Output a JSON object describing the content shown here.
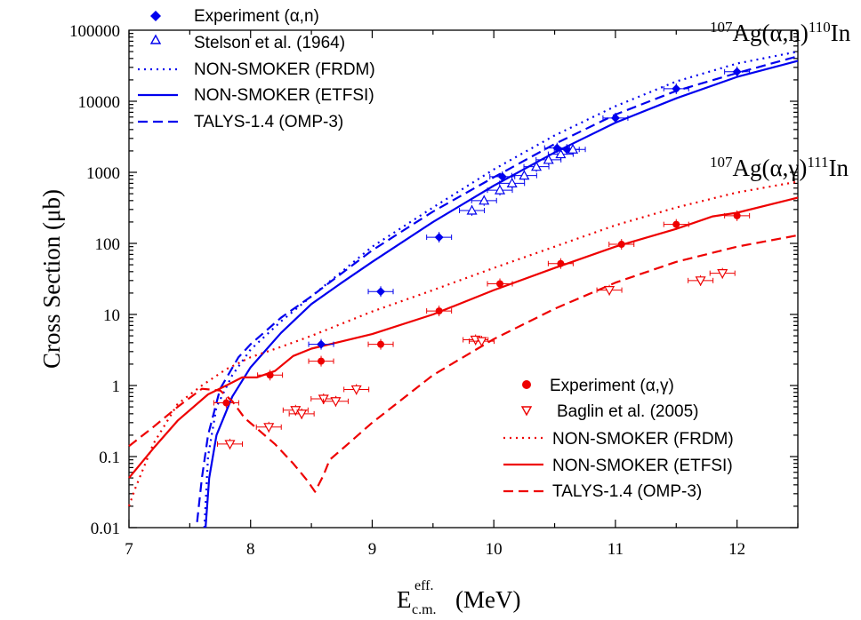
{
  "chart_data": {
    "type": "scatter",
    "xlabel": "E",
    "xlabel_sup": "eff.",
    "xlabel_sub": "c.m.",
    "xlabel_unit": "(MeV)",
    "ylabel": "Cross Section (μb)",
    "y_scale": "log",
    "xlim": [
      7,
      12.5
    ],
    "ylim": [
      0.01,
      100000
    ],
    "x_ticks": [
      "7",
      "8",
      "9",
      "10",
      "11",
      "12"
    ],
    "y_ticks": [
      "0.01",
      "0.1",
      "1",
      "10",
      "100",
      "1000",
      "10000",
      "100000"
    ],
    "reaction_labels": [
      {
        "pre": "107",
        "main": "Ag(α,n)",
        "sup": "110",
        "post": "In"
      },
      {
        "pre": "107",
        "main": "Ag(α,γ)",
        "sup": "111",
        "post": "In"
      }
    ],
    "legends": [
      {
        "entries": [
          {
            "label": "Experiment (α,n)"
          },
          {
            "label": "Stelson et al. (1964)"
          },
          {
            "label": "NON-SMOKER (FRDM)"
          },
          {
            "label": "NON-SMOKER (ETFSI)"
          },
          {
            "label": "TALYS-1.4 (OMP-3)"
          }
        ]
      },
      {
        "entries": [
          {
            "label": "Experiment (α,γ)"
          },
          {
            "label": "Baglin et al. (2005)"
          },
          {
            "label": "NON-SMOKER (FRDM)"
          },
          {
            "label": "NON-SMOKER (ETFSI)"
          },
          {
            "label": "TALYS-1.4 (OMP-3)"
          }
        ]
      }
    ],
    "series": [
      {
        "id": "an_exp",
        "marker": "diamond",
        "color": "#0000ee",
        "points": [
          [
            8.58,
            3.8
          ],
          [
            9.07,
            21
          ],
          [
            9.55,
            122
          ],
          [
            10.07,
            870
          ],
          [
            10.52,
            2200
          ],
          [
            10.6,
            2100
          ],
          [
            11.0,
            5800
          ],
          [
            11.5,
            15000
          ],
          [
            12.0,
            26000
          ]
        ]
      },
      {
        "id": "an_stelson",
        "marker": "triangle",
        "color": "#0000ee",
        "points": [
          [
            9.82,
            290
          ],
          [
            9.92,
            400
          ],
          [
            10.05,
            560
          ],
          [
            10.15,
            700
          ],
          [
            10.25,
            900
          ],
          [
            10.35,
            1200
          ],
          [
            10.45,
            1500
          ],
          [
            10.55,
            1800
          ],
          [
            10.65,
            2100
          ]
        ]
      },
      {
        "id": "an_frdm",
        "line": "dotted",
        "color": "#0000ee",
        "points": [
          [
            7.62,
            0.01
          ],
          [
            7.65,
            0.1
          ],
          [
            7.72,
            0.5
          ],
          [
            7.85,
            1.4
          ],
          [
            8.0,
            3.2
          ],
          [
            8.25,
            8
          ],
          [
            8.5,
            18
          ],
          [
            8.75,
            40
          ],
          [
            9.0,
            90
          ],
          [
            9.5,
            320
          ],
          [
            10.0,
            1100
          ],
          [
            10.5,
            3300
          ],
          [
            11.0,
            8500
          ],
          [
            11.5,
            19000
          ],
          [
            12.0,
            34000
          ],
          [
            12.5,
            50000
          ]
        ]
      },
      {
        "id": "an_etfsi",
        "line": "solid",
        "color": "#0000ee",
        "points": [
          [
            7.63,
            0.01
          ],
          [
            7.66,
            0.05
          ],
          [
            7.72,
            0.2
          ],
          [
            7.85,
            0.7
          ],
          [
            8.0,
            1.8
          ],
          [
            8.25,
            5.5
          ],
          [
            8.5,
            14
          ],
          [
            8.75,
            28
          ],
          [
            9.0,
            55
          ],
          [
            9.5,
            200
          ],
          [
            10.0,
            650
          ],
          [
            10.5,
            1900
          ],
          [
            11.0,
            5000
          ],
          [
            11.5,
            11000
          ],
          [
            12.0,
            22000
          ],
          [
            12.5,
            37000
          ]
        ]
      },
      {
        "id": "an_talys",
        "line": "dashed",
        "color": "#0000ee",
        "points": [
          [
            7.56,
            0.012
          ],
          [
            7.6,
            0.05
          ],
          [
            7.65,
            0.2
          ],
          [
            7.75,
            0.9
          ],
          [
            7.9,
            2.5
          ],
          [
            8.0,
            3.8
          ],
          [
            8.25,
            9
          ],
          [
            8.5,
            18
          ],
          [
            8.75,
            38
          ],
          [
            9.0,
            80
          ],
          [
            9.5,
            280
          ],
          [
            10.0,
            850
          ],
          [
            10.5,
            2500
          ],
          [
            11.0,
            6500
          ],
          [
            11.5,
            14000
          ],
          [
            12.0,
            25000
          ],
          [
            12.5,
            43000
          ]
        ]
      },
      {
        "id": "ag_exp",
        "marker": "circle",
        "color": "#ee0000",
        "points": [
          [
            7.8,
            0.57
          ],
          [
            8.16,
            1.4
          ],
          [
            8.58,
            2.2
          ],
          [
            9.07,
            3.8
          ],
          [
            9.55,
            11.2
          ],
          [
            10.05,
            27
          ],
          [
            10.55,
            52
          ],
          [
            11.05,
            97
          ],
          [
            11.5,
            185
          ],
          [
            12.0,
            245
          ]
        ]
      },
      {
        "id": "ag_baglin",
        "marker": "triangle-down",
        "color": "#ee0000",
        "points": [
          [
            7.83,
            0.15
          ],
          [
            8.15,
            0.26
          ],
          [
            8.37,
            0.45
          ],
          [
            8.42,
            0.4
          ],
          [
            8.6,
            0.65
          ],
          [
            8.7,
            0.6
          ],
          [
            8.87,
            0.88
          ],
          [
            9.85,
            4.4
          ],
          [
            9.9,
            4.2
          ],
          [
            10.95,
            22
          ],
          [
            11.7,
            30
          ],
          [
            11.88,
            38
          ]
        ]
      },
      {
        "id": "ag_frdm",
        "line": "dotted",
        "color": "#ee0000",
        "points": [
          [
            7.0,
            0.02
          ],
          [
            7.05,
            0.035
          ],
          [
            7.2,
            0.15
          ],
          [
            7.4,
            0.55
          ],
          [
            7.6,
            1.0
          ],
          [
            7.8,
            1.7
          ],
          [
            8.0,
            2.5
          ],
          [
            8.25,
            3.5
          ],
          [
            8.5,
            5.0
          ],
          [
            9.0,
            11
          ],
          [
            9.5,
            22
          ],
          [
            10.0,
            45
          ],
          [
            10.5,
            90
          ],
          [
            11.0,
            180
          ],
          [
            11.5,
            320
          ],
          [
            12.0,
            520
          ],
          [
            12.5,
            740
          ]
        ]
      },
      {
        "id": "ag_etfsi",
        "line": "solid",
        "color": "#ee0000",
        "points": [
          [
            7.0,
            0.05
          ],
          [
            7.2,
            0.13
          ],
          [
            7.4,
            0.32
          ],
          [
            7.65,
            0.75
          ],
          [
            7.8,
            1.0
          ],
          [
            7.93,
            1.3
          ],
          [
            8.05,
            1.3
          ],
          [
            8.2,
            1.6
          ],
          [
            8.35,
            2.6
          ],
          [
            8.5,
            3.3
          ],
          [
            9.0,
            5.3
          ],
          [
            9.5,
            10
          ],
          [
            10.0,
            22
          ],
          [
            10.5,
            45
          ],
          [
            11.0,
            90
          ],
          [
            11.5,
            160
          ],
          [
            11.8,
            240
          ],
          [
            12.0,
            270
          ],
          [
            12.5,
            440
          ]
        ]
      },
      {
        "id": "ag_talys",
        "line": "dashed",
        "color": "#ee0000",
        "points": [
          [
            7.0,
            0.14
          ],
          [
            7.2,
            0.26
          ],
          [
            7.4,
            0.5
          ],
          [
            7.6,
            0.9
          ],
          [
            7.75,
            0.85
          ],
          [
            7.85,
            0.6
          ],
          [
            7.95,
            0.35
          ],
          [
            8.05,
            0.25
          ],
          [
            8.2,
            0.15
          ],
          [
            8.35,
            0.08
          ],
          [
            8.47,
            0.045
          ],
          [
            8.53,
            0.032
          ],
          [
            8.6,
            0.055
          ],
          [
            8.65,
            0.09
          ],
          [
            8.8,
            0.15
          ],
          [
            9.0,
            0.3
          ],
          [
            9.5,
            1.4
          ],
          [
            10.0,
            4.5
          ],
          [
            10.5,
            12
          ],
          [
            11.0,
            28
          ],
          [
            11.5,
            55
          ],
          [
            12.0,
            90
          ],
          [
            12.5,
            130
          ]
        ]
      }
    ]
  }
}
